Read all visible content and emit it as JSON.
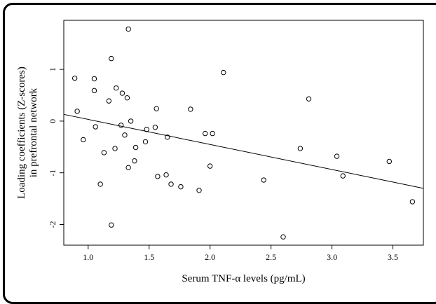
{
  "chart_data": {
    "type": "scatter",
    "title": "",
    "xlabel": "Serum TNF-α levels (pg/mL)",
    "ylabel_lines": [
      "Loading coefficients (Z-scores)",
      "in prefrontal network"
    ],
    "xlim": [
      0.8,
      3.75
    ],
    "ylim": [
      -2.4,
      1.95
    ],
    "xticks": [
      1.0,
      1.5,
      2.0,
      2.5,
      3.0,
      3.5
    ],
    "xtick_labels": [
      "1.0",
      "1.5",
      "2.0",
      "2.5",
      "3.0",
      "3.5"
    ],
    "yticks": [
      -2,
      -1,
      0,
      1
    ],
    "ytick_labels": [
      "-2",
      "-1",
      "0",
      "1"
    ],
    "grid": false,
    "regression_line": {
      "x": [
        0.8,
        3.75
      ],
      "y": [
        0.13,
        -1.3
      ]
    },
    "points": [
      {
        "x": 0.89,
        "y": 0.83
      },
      {
        "x": 0.91,
        "y": 0.19
      },
      {
        "x": 0.96,
        "y": -0.36
      },
      {
        "x": 1.05,
        "y": 0.82
      },
      {
        "x": 1.05,
        "y": 0.59
      },
      {
        "x": 1.06,
        "y": -0.11
      },
      {
        "x": 1.1,
        "y": -1.22
      },
      {
        "x": 1.13,
        "y": -0.61
      },
      {
        "x": 1.17,
        "y": 0.39
      },
      {
        "x": 1.19,
        "y": 1.21
      },
      {
        "x": 1.19,
        "y": -2.01
      },
      {
        "x": 1.22,
        "y": -0.53
      },
      {
        "x": 1.23,
        "y": 0.64
      },
      {
        "x": 1.27,
        "y": -0.08
      },
      {
        "x": 1.28,
        "y": 0.54
      },
      {
        "x": 1.3,
        "y": -0.27
      },
      {
        "x": 1.32,
        "y": 0.45
      },
      {
        "x": 1.33,
        "y": 1.78
      },
      {
        "x": 1.33,
        "y": -0.9
      },
      {
        "x": 1.35,
        "y": 0.0
      },
      {
        "x": 1.38,
        "y": -0.77
      },
      {
        "x": 1.39,
        "y": -0.51
      },
      {
        "x": 1.47,
        "y": -0.4
      },
      {
        "x": 1.48,
        "y": -0.16
      },
      {
        "x": 1.55,
        "y": -0.12
      },
      {
        "x": 1.56,
        "y": 0.24
      },
      {
        "x": 1.57,
        "y": -1.07
      },
      {
        "x": 1.64,
        "y": -1.04
      },
      {
        "x": 1.65,
        "y": -0.31
      },
      {
        "x": 1.68,
        "y": -1.22
      },
      {
        "x": 1.76,
        "y": -1.27
      },
      {
        "x": 1.84,
        "y": 0.23
      },
      {
        "x": 1.91,
        "y": -1.34
      },
      {
        "x": 1.96,
        "y": -0.24
      },
      {
        "x": 2.0,
        "y": -0.87
      },
      {
        "x": 2.02,
        "y": -0.24
      },
      {
        "x": 2.11,
        "y": 0.94
      },
      {
        "x": 2.44,
        "y": -1.14
      },
      {
        "x": 2.6,
        "y": -2.24
      },
      {
        "x": 2.74,
        "y": -0.53
      },
      {
        "x": 2.81,
        "y": 0.43
      },
      {
        "x": 3.04,
        "y": -0.68
      },
      {
        "x": 3.09,
        "y": -1.06
      },
      {
        "x": 3.47,
        "y": -0.78
      },
      {
        "x": 3.66,
        "y": -1.56
      }
    ]
  }
}
